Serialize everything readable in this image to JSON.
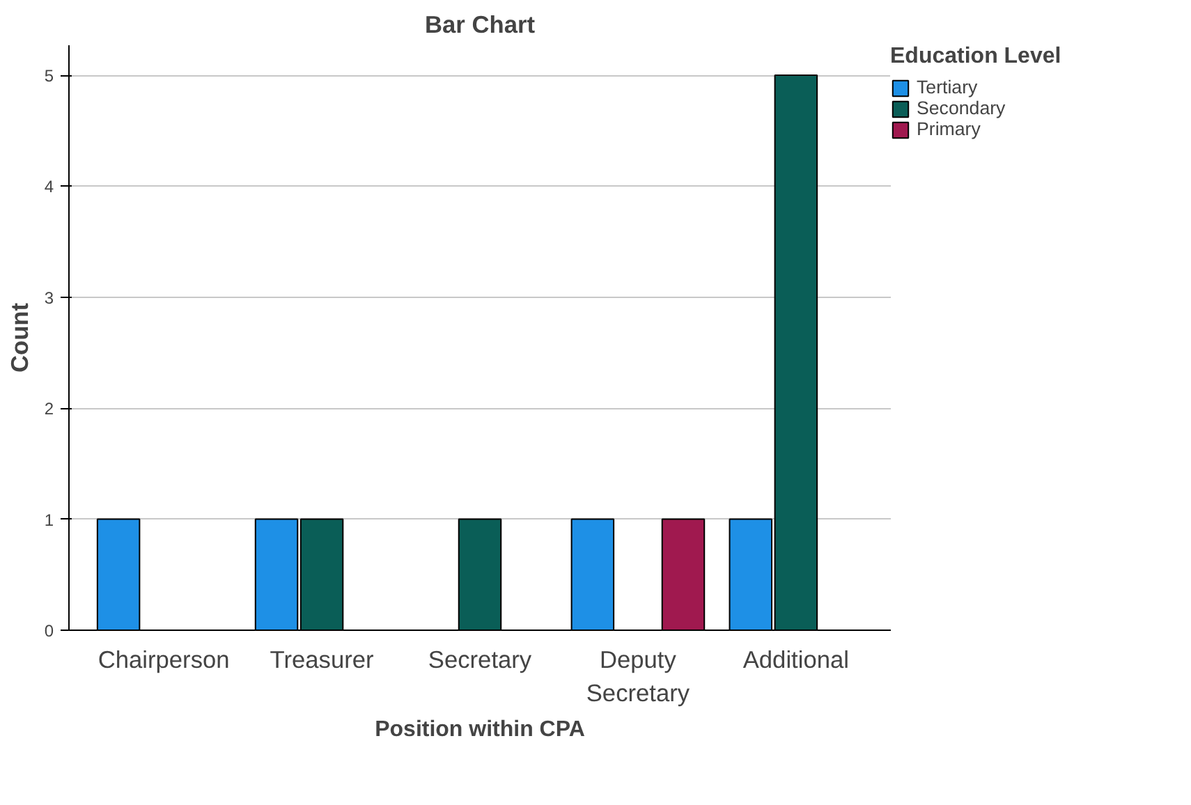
{
  "chart_data": {
    "type": "bar",
    "title": "Bar Chart",
    "xlabel": "Position within CPA",
    "ylabel": "Count",
    "legend_title": "Education Level",
    "categories": [
      "Chairperson",
      "Treasurer",
      "Secretary",
      "Deputy Secretary",
      "Additional"
    ],
    "series": [
      {
        "name": "Tertiary",
        "color": "#1e90e6",
        "values": [
          1,
          1,
          null,
          1,
          1
        ]
      },
      {
        "name": "Secondary",
        "color": "#0a5e57",
        "values": [
          null,
          1,
          1,
          null,
          5
        ]
      },
      {
        "name": "Primary",
        "color": "#a0194f",
        "values": [
          null,
          null,
          null,
          1,
          null
        ]
      }
    ],
    "ylim": [
      0,
      5.27
    ],
    "yticks": [
      0,
      1,
      2,
      3,
      4,
      5
    ],
    "grid": "y",
    "legend": "top right"
  }
}
